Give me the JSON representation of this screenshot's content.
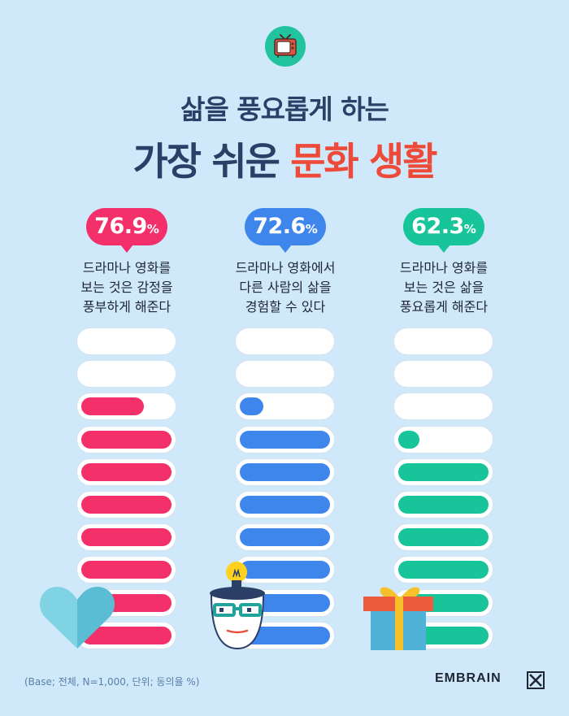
{
  "title": {
    "line1": "삶을 풍요롭게 하는",
    "line2_main": "가장 쉬운",
    "line2_accent": "문화 생활"
  },
  "chart_data": {
    "type": "bar",
    "categories": [
      "드라마나 영화를 보는 것은 감정을 풍부하게 해준다",
      "드라마나 영화에서 다른 사람의 삶을 경험할 수 있다",
      "드라마나 영화를 보는 것은 삶을 풍요롭게 해준다"
    ],
    "values": [
      76.9,
      72.6,
      62.3
    ],
    "unit": "%",
    "ylim": [
      0,
      100
    ],
    "columns": [
      {
        "value": "76.9",
        "unit": "%",
        "color": "#f3306a",
        "caption_lines": [
          "드라마나 영화를",
          "보는 것은 감정을",
          "풍부하게 해준다"
        ]
      },
      {
        "value": "72.6",
        "unit": "%",
        "color": "#3f86ec",
        "caption_lines": [
          "드라마나 영화에서",
          "다른 사람의 삶을",
          "경험할 수 있다"
        ]
      },
      {
        "value": "62.3",
        "unit": "%",
        "color": "#18c59a",
        "caption_lines": [
          "드라마나 영화를",
          "보는 것은 삶을",
          "풍요롭게 해준다"
        ]
      }
    ]
  },
  "footnote": "(Base; 전체, N=1,000, 단위; 동의율 %)",
  "brand": "EMBRAIN",
  "icons": [
    "tv-icon",
    "heart-icon",
    "lightbulb-head-icon",
    "gift-icon",
    "embrain-logo-icon"
  ]
}
